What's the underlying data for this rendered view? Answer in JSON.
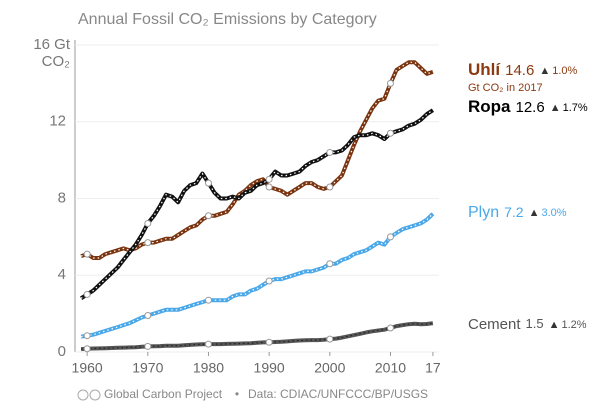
{
  "chart_data": {
    "type": "line",
    "title": "Annual Fossil CO₂ Emissions by Category",
    "x": [
      1959,
      1960,
      1961,
      1962,
      1963,
      1964,
      1965,
      1966,
      1967,
      1968,
      1969,
      1970,
      1971,
      1972,
      1973,
      1974,
      1975,
      1976,
      1977,
      1978,
      1979,
      1980,
      1981,
      1982,
      1983,
      1984,
      1985,
      1986,
      1987,
      1988,
      1989,
      1990,
      1991,
      1992,
      1993,
      1994,
      1995,
      1996,
      1997,
      1998,
      1999,
      2000,
      2001,
      2002,
      2003,
      2004,
      2005,
      2006,
      2007,
      2008,
      2009,
      2010,
      2011,
      2012,
      2013,
      2014,
      2015,
      2016,
      2017
    ],
    "xlim": [
      1958,
      2018
    ],
    "xticks": [
      1960,
      1970,
      1980,
      1990,
      2000,
      2010,
      {
        "value": 2017,
        "label": "17"
      }
    ],
    "ylim": [
      0,
      16
    ],
    "yticks": [
      0,
      4,
      8,
      12,
      {
        "value": 16,
        "label": "16 Gt CO₂"
      }
    ],
    "grid": true,
    "series": [
      {
        "name": "Uhlí",
        "color": "#7a3510",
        "change": "1.0%",
        "note": "Gt CO₂ in 2017",
        "values": [
          5.0,
          5.1,
          4.9,
          4.9,
          5.1,
          5.2,
          5.3,
          5.4,
          5.3,
          5.4,
          5.6,
          5.7,
          5.7,
          5.8,
          5.9,
          5.9,
          6.1,
          6.3,
          6.5,
          6.6,
          6.9,
          7.1,
          7.1,
          7.2,
          7.3,
          7.7,
          8.2,
          8.4,
          8.7,
          8.9,
          9.0,
          8.6,
          8.5,
          8.4,
          8.2,
          8.4,
          8.6,
          8.8,
          8.8,
          8.6,
          8.5,
          8.6,
          8.9,
          9.2,
          10.0,
          10.8,
          11.5,
          12.1,
          12.7,
          13.1,
          13.2,
          14.0,
          14.7,
          14.9,
          15.1,
          15.1,
          14.8,
          14.5,
          14.6
        ]
      },
      {
        "name": "Ropa",
        "color": "#111111",
        "change": "1.7%",
        "values": [
          2.8,
          3.0,
          3.2,
          3.5,
          3.8,
          4.1,
          4.4,
          4.8,
          5.2,
          5.6,
          6.1,
          6.7,
          7.1,
          7.6,
          8.2,
          8.1,
          7.8,
          8.4,
          8.7,
          8.8,
          9.3,
          8.8,
          8.3,
          8.0,
          8.0,
          8.1,
          8.0,
          8.3,
          8.4,
          8.7,
          8.8,
          9.0,
          9.4,
          9.2,
          9.2,
          9.3,
          9.4,
          9.7,
          9.9,
          10.0,
          10.2,
          10.4,
          10.4,
          10.5,
          10.8,
          11.2,
          11.3,
          11.3,
          11.4,
          11.3,
          11.1,
          11.4,
          11.5,
          11.6,
          11.8,
          11.9,
          12.1,
          12.4,
          12.6
        ]
      },
      {
        "name": "Plyn",
        "color": "#4aa8e8",
        "change": "3.0%",
        "values": [
          0.8,
          0.85,
          0.9,
          1.0,
          1.1,
          1.2,
          1.3,
          1.4,
          1.5,
          1.65,
          1.8,
          1.9,
          2.0,
          2.1,
          2.2,
          2.2,
          2.2,
          2.3,
          2.4,
          2.5,
          2.6,
          2.7,
          2.7,
          2.7,
          2.7,
          2.9,
          3.0,
          3.0,
          3.2,
          3.3,
          3.5,
          3.7,
          3.8,
          3.8,
          3.9,
          4.0,
          4.1,
          4.2,
          4.2,
          4.3,
          4.4,
          4.6,
          4.6,
          4.8,
          4.9,
          5.1,
          5.2,
          5.3,
          5.5,
          5.7,
          5.6,
          6.0,
          6.2,
          6.4,
          6.5,
          6.6,
          6.7,
          6.9,
          7.2
        ]
      },
      {
        "name": "Cement",
        "color": "#555555",
        "change": "1.2%",
        "values": [
          0.15,
          0.17,
          0.18,
          0.19,
          0.2,
          0.21,
          0.22,
          0.23,
          0.24,
          0.25,
          0.27,
          0.29,
          0.3,
          0.31,
          0.33,
          0.33,
          0.33,
          0.35,
          0.37,
          0.39,
          0.4,
          0.41,
          0.41,
          0.41,
          0.42,
          0.43,
          0.44,
          0.45,
          0.46,
          0.48,
          0.5,
          0.51,
          0.52,
          0.53,
          0.55,
          0.58,
          0.6,
          0.61,
          0.62,
          0.62,
          0.64,
          0.67,
          0.7,
          0.75,
          0.82,
          0.88,
          0.95,
          1.02,
          1.08,
          1.12,
          1.16,
          1.25,
          1.35,
          1.4,
          1.45,
          1.47,
          1.45,
          1.46,
          1.5
        ]
      }
    ],
    "source_left": "Global Carbon Project",
    "source_right": "Data: CDIAC/UNFCCC/BP/USGS"
  }
}
